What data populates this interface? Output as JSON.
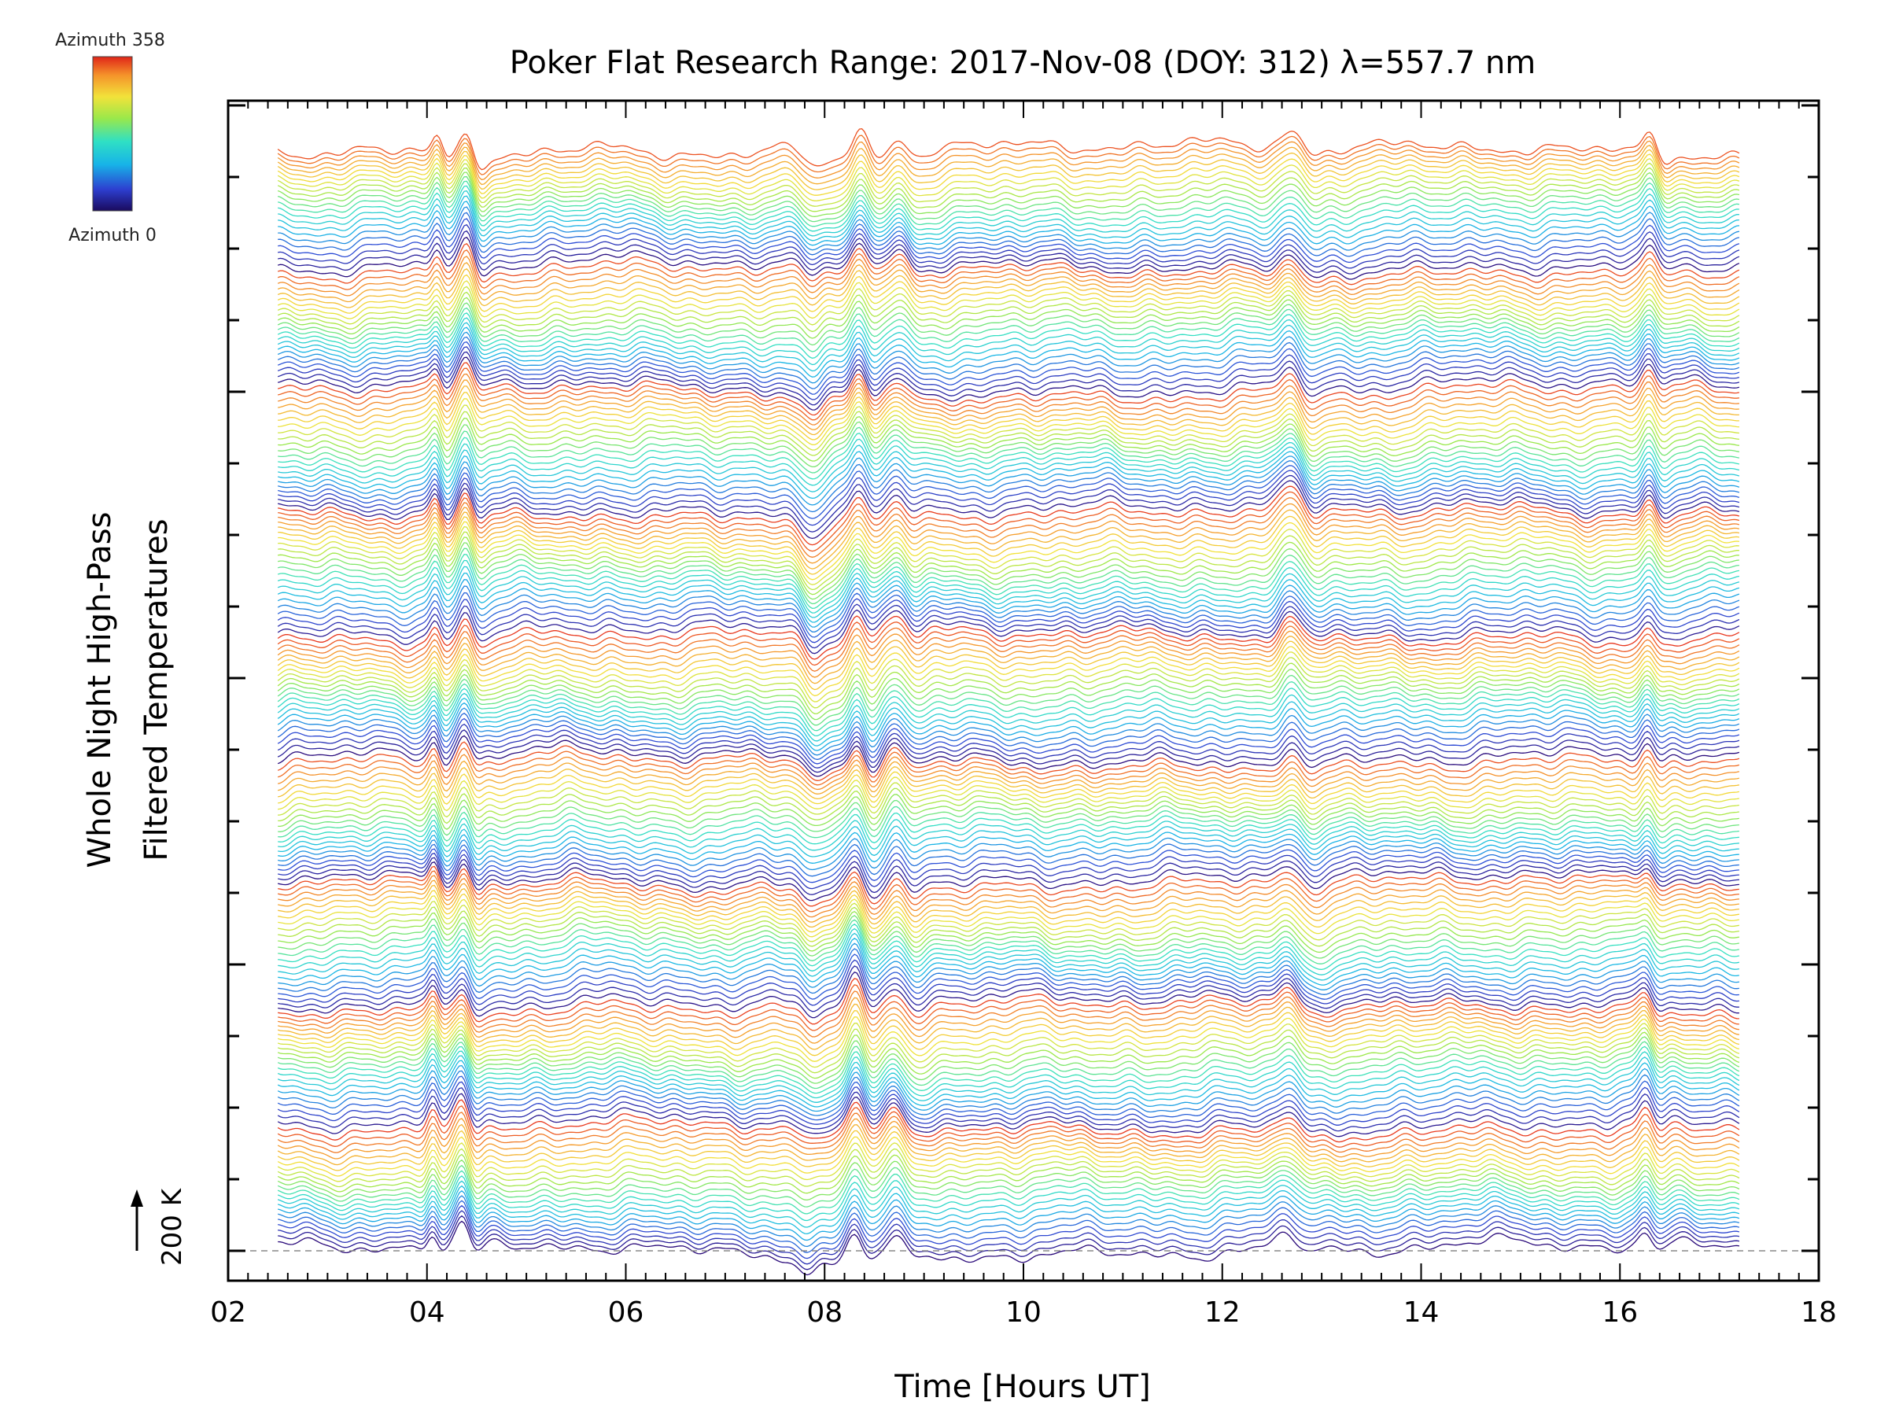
{
  "chart_data": {
    "type": "line",
    "title": "Poker Flat Research Range: 2017-Nov-08 (DOY: 312) λ=557.7 nm",
    "xlabel": "Time [Hours UT]",
    "ylabel_line1": "Whole Night High-Pass",
    "ylabel_line2": "Filtered Temperatures",
    "xlim": [
      2,
      18
    ],
    "x_ticks": [
      "02",
      "04",
      "06",
      "08",
      "10",
      "12",
      "14",
      "16",
      "18"
    ],
    "time_range": [
      2.5,
      17.2
    ],
    "scale_bar_label": "200 K",
    "colorbar": {
      "top_label": "Azimuth 358",
      "bottom_label": "Azimuth 0",
      "colormap": "rainbow",
      "colors": [
        "#2a0a7a",
        "#2d4bd6",
        "#19b5e6",
        "#35e0c2",
        "#9ae84a",
        "#f2e23a",
        "#f59a2b",
        "#e8331e"
      ]
    },
    "series_description": "stacked azimuth traces",
    "series_count": 200,
    "disturbance_events_hours_ut": [
      4.05,
      4.35,
      7.85,
      8.3,
      8.7,
      12.65,
      16.25
    ],
    "grid": false,
    "legend": "colorbar top-left"
  }
}
